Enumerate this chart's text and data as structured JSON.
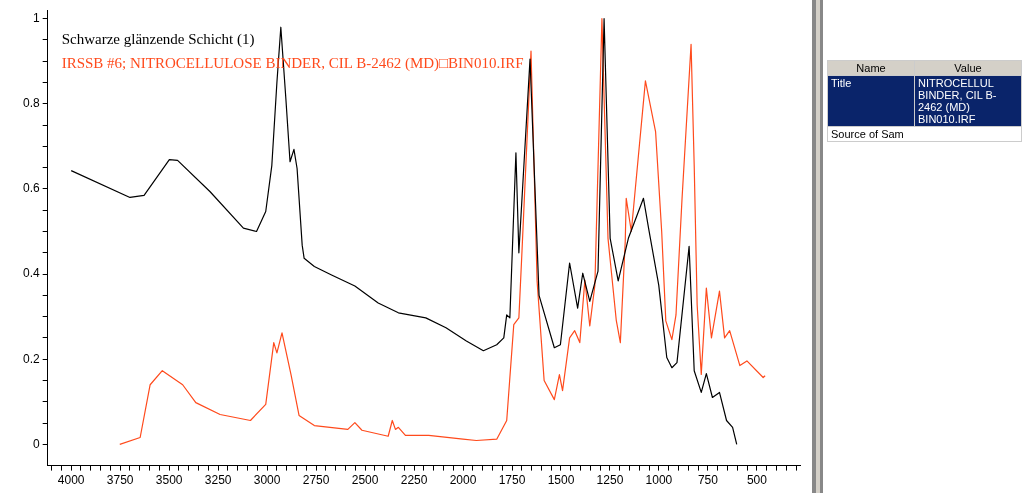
{
  "chart_data": {
    "type": "line",
    "legend": "top left",
    "grid": false,
    "marker": "none",
    "line_style": "solid",
    "xlim": [
      4120,
      280
    ],
    "xticks": [
      {
        "value": 4100,
        "label": null
      },
      {
        "value": 4050,
        "label": null
      },
      4000,
      {
        "value": 3950,
        "label": null
      },
      {
        "value": 3900,
        "label": null
      },
      {
        "value": 3850,
        "label": null
      },
      {
        "value": 3800,
        "label": null
      },
      3750,
      {
        "value": 3700,
        "label": null
      },
      {
        "value": 3650,
        "label": null
      },
      {
        "value": 3600,
        "label": null
      },
      {
        "value": 3550,
        "label": null
      },
      3500,
      {
        "value": 3450,
        "label": null
      },
      {
        "value": 3400,
        "label": null
      },
      {
        "value": 3350,
        "label": null
      },
      {
        "value": 3300,
        "label": null
      },
      3250,
      {
        "value": 3200,
        "label": null
      },
      {
        "value": 3150,
        "label": null
      },
      {
        "value": 3100,
        "label": null
      },
      {
        "value": 3050,
        "label": null
      },
      3000,
      {
        "value": 2950,
        "label": null
      },
      {
        "value": 2900,
        "label": null
      },
      {
        "value": 2850,
        "label": null
      },
      {
        "value": 2800,
        "label": null
      },
      2750,
      {
        "value": 2700,
        "label": null
      },
      {
        "value": 2650,
        "label": null
      },
      {
        "value": 2600,
        "label": null
      },
      {
        "value": 2550,
        "label": null
      },
      2500,
      {
        "value": 2450,
        "label": null
      },
      {
        "value": 2400,
        "label": null
      },
      {
        "value": 2350,
        "label": null
      },
      {
        "value": 2300,
        "label": null
      },
      2250,
      {
        "value": 2200,
        "label": null
      },
      {
        "value": 2150,
        "label": null
      },
      {
        "value": 2100,
        "label": null
      },
      {
        "value": 2050,
        "label": null
      },
      2000,
      {
        "value": 1950,
        "label": null
      },
      {
        "value": 1900,
        "label": null
      },
      {
        "value": 1850,
        "label": null
      },
      {
        "value": 1800,
        "label": null
      },
      1750,
      {
        "value": 1700,
        "label": null
      },
      {
        "value": 1650,
        "label": null
      },
      {
        "value": 1600,
        "label": null
      },
      {
        "value": 1550,
        "label": null
      },
      1500,
      {
        "value": 1450,
        "label": null
      },
      {
        "value": 1400,
        "label": null
      },
      {
        "value": 1350,
        "label": null
      },
      {
        "value": 1300,
        "label": null
      },
      1250,
      {
        "value": 1200,
        "label": null
      },
      {
        "value": 1150,
        "label": null
      },
      {
        "value": 1100,
        "label": null
      },
      {
        "value": 1050,
        "label": null
      },
      1000,
      {
        "value": 950,
        "label": null
      },
      {
        "value": 900,
        "label": null
      },
      {
        "value": 850,
        "label": null
      },
      {
        "value": 800,
        "label": null
      },
      750,
      {
        "value": 700,
        "label": null
      },
      {
        "value": 650,
        "label": null
      },
      {
        "value": 600,
        "label": null
      },
      {
        "value": 550,
        "label": null
      },
      500,
      {
        "value": 450,
        "label": null
      },
      {
        "value": 400,
        "label": null
      },
      {
        "value": 350,
        "label": null
      },
      {
        "value": 300,
        "label": null
      }
    ],
    "ylim": [
      -0.05,
      1.02
    ],
    "yticks": [
      0,
      {
        "value": 0.05,
        "label": null
      },
      {
        "value": 0.1,
        "label": null
      },
      {
        "value": 0.15,
        "label": null
      },
      0.2,
      {
        "value": 0.25,
        "label": null
      },
      {
        "value": 0.3,
        "label": null
      },
      {
        "value": 0.35,
        "label": null
      },
      0.4,
      {
        "value": 0.45,
        "label": null
      },
      {
        "value": 0.5,
        "label": null
      },
      {
        "value": 0.55,
        "label": null
      },
      0.6,
      {
        "value": 0.65,
        "label": null
      },
      {
        "value": 0.7,
        "label": null
      },
      {
        "value": 0.75,
        "label": null
      },
      0.8,
      {
        "value": 0.85,
        "label": null
      },
      {
        "value": 0.9,
        "label": null
      },
      {
        "value": 0.95,
        "label": null
      },
      1
    ],
    "series": [
      {
        "name": "Schwarze glänzende Schicht (1)",
        "color": "#000000",
        "x": [
          4000,
          3700,
          3628,
          3499,
          3457,
          3292,
          3121,
          3054,
          3007,
          2976,
          2950,
          2930,
          2904,
          2883,
          2863,
          2847,
          2821,
          2811,
          2759,
          2671,
          2552,
          2433,
          2330,
          2190,
          2087,
          1983,
          1896,
          1828,
          1792,
          1777,
          1761,
          1730,
          1715,
          1658,
          1612,
          1534,
          1503,
          1456,
          1415,
          1389,
          1353,
          1311,
          1280,
          1249,
          1208,
          1156,
          1079,
          1053,
          1001,
          960,
          934,
          908,
          846,
          820,
          784,
          758,
          727,
          691,
          655,
          624,
          603
        ],
        "values": [
          0.643,
          0.58,
          0.585,
          0.669,
          0.667,
          0.594,
          0.508,
          0.5,
          0.547,
          0.655,
          0.85,
          0.98,
          0.81,
          0.664,
          0.693,
          0.648,
          0.468,
          0.437,
          0.418,
          0.398,
          0.372,
          0.332,
          0.309,
          0.297,
          0.274,
          0.243,
          0.22,
          0.234,
          0.25,
          0.304,
          0.297,
          0.685,
          0.45,
          0.905,
          0.35,
          0.227,
          0.234,
          0.426,
          0.32,
          0.402,
          0.336,
          0.407,
          1.0,
          0.484,
          0.384,
          0.484,
          0.578,
          0.508,
          0.374,
          0.204,
          0.18,
          0.192,
          0.465,
          0.173,
          0.122,
          0.166,
          0.11,
          0.122,
          0.056,
          0.04,
          0.0
        ]
      },
      {
        "name": "IRSSB #6; NITROCELLULOSE BINDER, CIL B-2462 (MD)□BIN010.IRF",
        "color": "#ff4a1c",
        "x": [
          3752,
          3648,
          3597,
          3535,
          3431,
          3364,
          3240,
          3085,
          3007,
          2966,
          2950,
          2924,
          2878,
          2837,
          2759,
          2588,
          2552,
          2516,
          2382,
          2361,
          2345,
          2330,
          2294,
          2175,
          2000,
          1932,
          1828,
          1777,
          1741,
          1715,
          1699,
          1653,
          1622,
          1586,
          1534,
          1508,
          1492,
          1456,
          1430,
          1404,
          1378,
          1353,
          1327,
          1291,
          1260,
          1218,
          1197,
          1172,
          1167,
          1141,
          1069,
          1017,
          986,
          965,
          934,
          913,
          882,
          836,
          820,
          805,
          784,
          758,
          732,
          691,
          665,
          639,
          587,
          551,
          468,
          458
        ],
        "values": [
          0.0,
          0.016,
          0.14,
          0.173,
          0.14,
          0.098,
          0.07,
          0.056,
          0.094,
          0.239,
          0.215,
          0.262,
          0.164,
          0.068,
          0.044,
          0.035,
          0.051,
          0.033,
          0.019,
          0.056,
          0.035,
          0.04,
          0.021,
          0.021,
          0.012,
          0.009,
          0.012,
          0.056,
          0.281,
          0.297,
          0.454,
          0.924,
          0.384,
          0.15,
          0.105,
          0.164,
          0.126,
          0.25,
          0.267,
          0.239,
          0.386,
          0.278,
          0.374,
          1.0,
          0.484,
          0.292,
          0.239,
          0.477,
          0.578,
          0.5,
          0.854,
          0.734,
          0.5,
          0.29,
          0.246,
          0.304,
          0.578,
          0.94,
          0.655,
          0.328,
          0.164,
          0.367,
          0.25,
          0.36,
          0.25,
          0.267,
          0.185,
          0.196,
          0.157,
          0.161
        ]
      }
    ],
    "annotations": [
      "Name",
      "Value",
      "Title",
      "NITROCELLUL BINDER, CIL B-2462 (MD) BIN010.IRF",
      "Source of Sam"
    ]
  }
}
